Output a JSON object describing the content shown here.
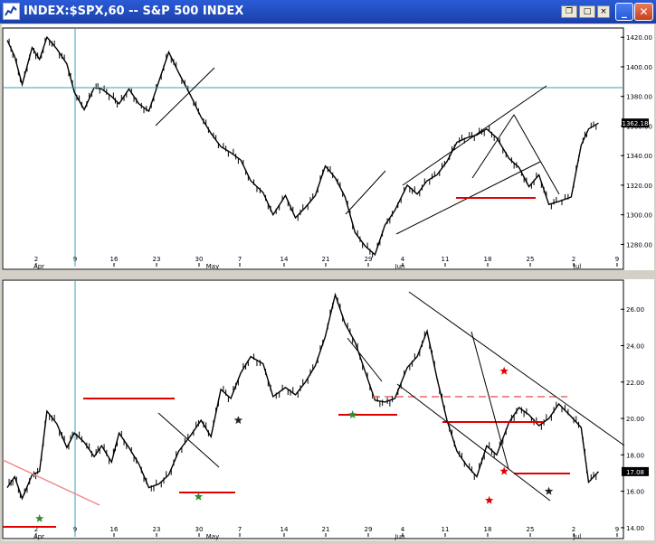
{
  "window": {
    "title": "INDEX:$SPX,60 -- S&P 500 INDEX",
    "buttons": [
      "minimize",
      "maximize",
      "close"
    ],
    "mini_buttons": [
      "restore",
      "maximize",
      "close"
    ]
  },
  "chart_data": [
    {
      "type": "line",
      "name": "price",
      "yscale": "linear",
      "ylim": [
        1265,
        1425
      ],
      "yticks": [
        1280,
        1300,
        1320,
        1340,
        1360,
        1380,
        1400,
        1420
      ],
      "ytick_labels": [
        "1280.00",
        "1300.00",
        "1320.00",
        "1340.00",
        "1360.00",
        "1380.00",
        "1400.00",
        "1420.00"
      ],
      "last_value_label": "1362.18",
      "x_ticks": [
        "2",
        "9",
        "16",
        "23",
        "30",
        "7",
        "14",
        "21",
        "29",
        "4",
        "11",
        "18",
        "25",
        "2",
        "9"
      ],
      "month_labels": [
        "Apr",
        "May",
        "Jun",
        "Jul"
      ],
      "grid": false,
      "x": [
        0,
        3,
        6,
        10,
        13,
        16,
        20,
        24,
        27,
        31,
        35,
        38,
        42,
        45,
        49,
        53,
        57,
        61,
        65,
        69,
        74,
        78,
        82,
        86,
        90,
        94,
        98,
        103,
        107,
        112,
        116,
        120,
        124,
        128,
        132,
        136,
        140,
        144,
        148,
        152,
        156,
        161,
        165,
        169,
        173,
        177,
        181,
        185,
        189,
        193,
        197,
        202,
        206,
        210,
        214,
        218,
        222,
        227,
        231,
        234,
        238
      ],
      "series": [
        {
          "values": [
            1418,
            1407,
            1388,
            1413,
            1405,
            1420,
            1412,
            1402,
            1383,
            1371,
            1386,
            1385,
            1380,
            1375,
            1385,
            1375,
            1370,
            1390,
            1410,
            1396,
            1380,
            1366,
            1355,
            1346,
            1342,
            1337,
            1323,
            1315,
            1300,
            1313,
            1298,
            1305,
            1313,
            1333,
            1325,
            1312,
            1288,
            1279,
            1273,
            1293,
            1303,
            1320,
            1314,
            1323,
            1327,
            1336,
            1349,
            1352,
            1354,
            1358,
            1352,
            1338,
            1332,
            1319,
            1327,
            1307,
            1309,
            1312,
            1347,
            1358,
            1362
          ]
        }
      ]
    },
    {
      "type": "line",
      "name": "vix",
      "yscale": "linear",
      "ylim": [
        13.5,
        27.5
      ],
      "yticks": [
        14,
        16,
        18,
        20,
        22,
        24,
        26
      ],
      "ytick_labels": [
        "14.00",
        "16.00",
        "18.00",
        "20.00",
        "22.00",
        "24.00",
        "26.00"
      ],
      "last_value_label": "17.08",
      "x_ticks": [
        "2",
        "9",
        "16",
        "23",
        "30",
        "7",
        "14",
        "21",
        "29",
        "4",
        "11",
        "18",
        "25",
        "2",
        "9"
      ],
      "month_labels": [
        "Apr",
        "May",
        "Jun",
        "Jul"
      ],
      "grid": false,
      "x": [
        0,
        3,
        6,
        10,
        13,
        16,
        20,
        24,
        27,
        31,
        35,
        38,
        42,
        45,
        49,
        53,
        57,
        61,
        65,
        69,
        74,
        78,
        82,
        86,
        90,
        94,
        98,
        103,
        107,
        112,
        116,
        120,
        124,
        128,
        132,
        136,
        140,
        144,
        148,
        152,
        156,
        161,
        165,
        169,
        173,
        177,
        181,
        185,
        189,
        193,
        197,
        202,
        206,
        210,
        214,
        218,
        222,
        227,
        231,
        234,
        238
      ],
      "series": [
        {
          "values": [
            16.2,
            16.8,
            15.6,
            16.9,
            17.1,
            20.4,
            19.7,
            18.4,
            19.2,
            18.7,
            17.9,
            18.5,
            17.6,
            19.2,
            18.4,
            17.5,
            16.2,
            16.4,
            16.9,
            18.2,
            19.1,
            19.9,
            19.0,
            21.6,
            21.1,
            22.5,
            23.4,
            23.0,
            21.2,
            21.7,
            21.3,
            22.0,
            22.9,
            24.5,
            26.8,
            25.2,
            24.2,
            22.6,
            21.0,
            20.9,
            21.1,
            22.8,
            23.4,
            24.8,
            22.2,
            19.9,
            18.2,
            17.4,
            16.8,
            18.5,
            18.0,
            19.8,
            20.6,
            20.2,
            19.6,
            20.0,
            20.8,
            20.1,
            19.5,
            16.5,
            17.08
          ]
        }
      ],
      "markers": [
        {
          "symbol": "star",
          "color": "#2e8b2e",
          "x": 13,
          "y": 14.5
        },
        {
          "symbol": "star",
          "color": "#2e8b2e",
          "x": 77,
          "y": 15.7
        },
        {
          "symbol": "star",
          "color": "#222222",
          "x": 93,
          "y": 19.9
        },
        {
          "symbol": "star",
          "color": "#2e8b2e",
          "x": 139,
          "y": 20.2
        },
        {
          "symbol": "star",
          "color": "#e00000",
          "x": 200,
          "y": 22.6
        },
        {
          "symbol": "star",
          "color": "#e00000",
          "x": 200,
          "y": 17.1
        },
        {
          "symbol": "star",
          "color": "#e00000",
          "x": 194,
          "y": 15.5
        },
        {
          "symbol": "star",
          "color": "#222222",
          "x": 218,
          "y": 16.0
        }
      ]
    }
  ],
  "colors": {
    "background": "#ffffff",
    "price_line": "#000000",
    "support_line": "#e00000",
    "reference_line": "#3a9fb0",
    "channel_line": "#000000",
    "titlebar": "#1b3fa8"
  }
}
